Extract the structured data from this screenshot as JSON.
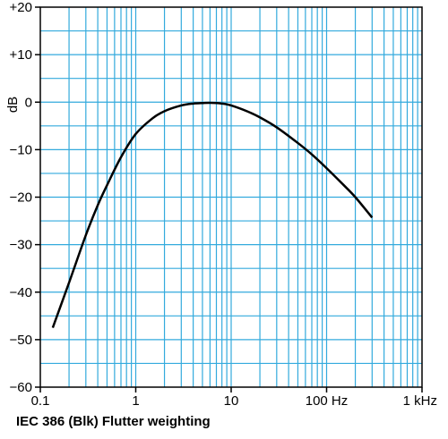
{
  "caption": "IEC 386 (Blk) Flutter weighting",
  "chart_data": {
    "type": "line",
    "title": "IEC 386 (Blk) Flutter weighting",
    "xlabel": "",
    "ylabel": "dB",
    "x_scale": "log",
    "xlim": [
      0.1,
      1000
    ],
    "ylim": [
      -60,
      20
    ],
    "grid": true,
    "grid_color": "#33aadd",
    "line_color": "#000000",
    "x_ticks": [
      {
        "value": 0.1,
        "label": "0.1"
      },
      {
        "value": 1,
        "label": "1"
      },
      {
        "value": 10,
        "label": "10"
      },
      {
        "value": 100,
        "label": "100 Hz"
      },
      {
        "value": 1000,
        "label": "1 kHz"
      }
    ],
    "y_ticks": [
      {
        "value": 20,
        "label": "+20"
      },
      {
        "value": 10,
        "label": "+10"
      },
      {
        "value": 0,
        "label": "0"
      },
      {
        "value": -10,
        "label": "−10"
      },
      {
        "value": -20,
        "label": "−20"
      },
      {
        "value": -30,
        "label": "−30"
      },
      {
        "value": -40,
        "label": "−40"
      },
      {
        "value": -50,
        "label": "−50"
      },
      {
        "value": -60,
        "label": "−60"
      }
    ],
    "x": [
      0.135,
      0.2,
      0.3,
      0.4,
      0.5,
      0.7,
      1.0,
      1.5,
      2,
      3,
      4,
      5,
      6,
      8,
      10,
      15,
      20,
      30,
      50,
      70,
      100,
      150,
      200,
      300
    ],
    "y": [
      -47.5,
      -38,
      -28,
      -21.7,
      -17.5,
      -11.6,
      -6.7,
      -3.4,
      -1.9,
      -0.7,
      -0.3,
      -0.2,
      -0.15,
      -0.3,
      -0.7,
      -2,
      -3.2,
      -5.3,
      -8.6,
      -11,
      -13.9,
      -17.4,
      -20,
      -24.3
    ]
  }
}
